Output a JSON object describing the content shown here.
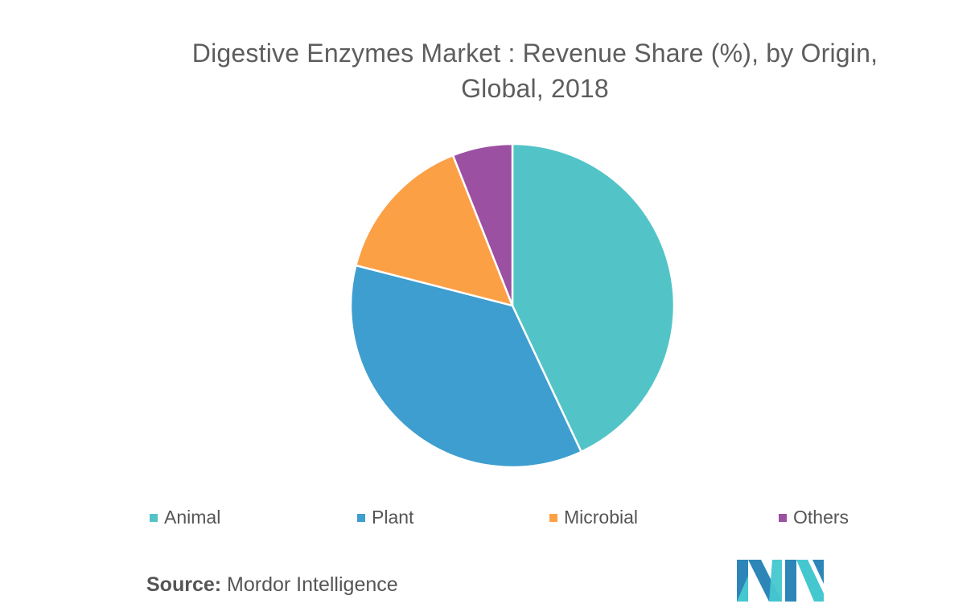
{
  "title_lines": [
    "Digestive Enzymes Market : Revenue Share (%), by  Origin,",
    "Global, 2018"
  ],
  "chart_data": {
    "type": "pie",
    "title": "Digestive Enzymes Market : Revenue Share (%), by  Origin, Global, 2018",
    "categories": [
      "Animal",
      "Plant",
      "Microbial",
      "Others"
    ],
    "values": [
      43,
      36,
      15,
      6
    ],
    "colors": [
      "#52c4c7",
      "#3e9ecf",
      "#fca046",
      "#9b50a2"
    ],
    "legend_placement": "bottom",
    "start_angle_deg": 0,
    "direction": "clockwise"
  },
  "legend": {
    "items": [
      {
        "label": "Animal",
        "color": "#52c4c7"
      },
      {
        "label": "Plant",
        "color": "#3e9ecf"
      },
      {
        "label": "Microbial",
        "color": "#fca046"
      },
      {
        "label": "Others",
        "color": "#9b50a2"
      }
    ]
  },
  "source": {
    "prefix": "Source:",
    "text": " Mordor Intelligence"
  },
  "logo": {
    "icon": "mordor-intelligence-logo",
    "colors": [
      "#2e86b8",
      "#45c7cf"
    ]
  }
}
